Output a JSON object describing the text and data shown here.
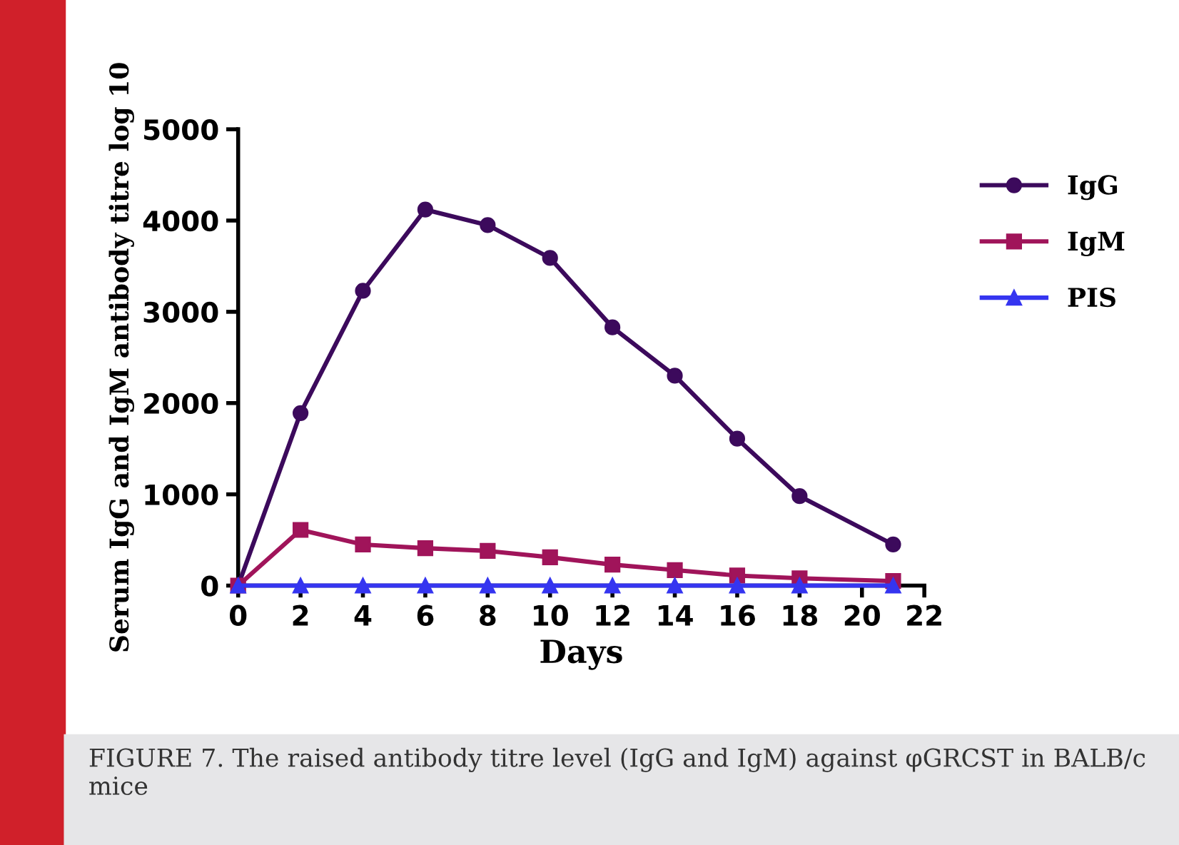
{
  "chart_data": {
    "type": "line",
    "xlabel": "Days",
    "ylabel": "Serum IgG and IgM antibody titre log 10",
    "x": [
      0,
      2,
      4,
      6,
      8,
      10,
      12,
      14,
      16,
      18,
      21
    ],
    "series": [
      {
        "name": "IgG",
        "color": "#3c0a5c",
        "marker": "circle",
        "values": [
          0,
          1890,
          3230,
          4120,
          3950,
          3590,
          2830,
          2300,
          1610,
          980,
          450
        ]
      },
      {
        "name": "IgM",
        "color": "#a0145a",
        "marker": "square",
        "values": [
          0,
          610,
          450,
          410,
          380,
          310,
          230,
          170,
          110,
          80,
          50
        ]
      },
      {
        "name": "PIS",
        "color": "#3535f0",
        "marker": "triangle",
        "values": [
          0,
          0,
          0,
          0,
          0,
          0,
          0,
          0,
          0,
          0,
          0
        ]
      }
    ],
    "xlim": [
      0,
      22
    ],
    "xticks": [
      0,
      2,
      4,
      6,
      8,
      10,
      12,
      14,
      16,
      18,
      20,
      22
    ],
    "ylim": [
      0,
      5000
    ],
    "yticks": [
      0,
      1000,
      2000,
      3000,
      4000,
      5000
    ],
    "grid": false,
    "legend": "right",
    "line_style": "solid",
    "annotations": [
      "FIGURE 7. The raised antibody titre level (IgG and IgM) against φGRCST in BALB/c mice"
    ]
  }
}
